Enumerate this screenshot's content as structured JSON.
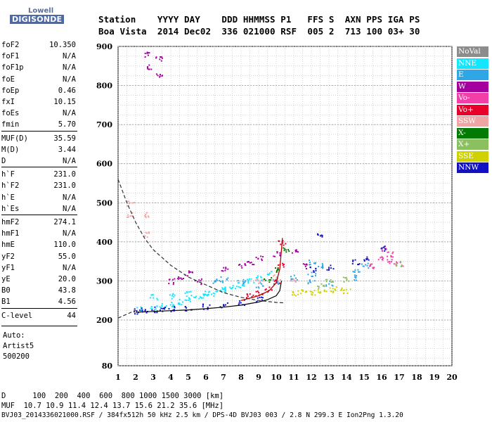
{
  "logo": {
    "line1": "Lowell",
    "line2": "DIGISONDE"
  },
  "header": {
    "row1": "Station    YYYY DAY    DDD HHMMSS P1   FFS S  AXN PPS IGA PS",
    "row2": "Boa Vista  2014 Dec02  336 021000 RSF  005 2  713 100 03+ 30"
  },
  "params": [
    {
      "k": "foF2",
      "v": "10.350"
    },
    {
      "k": "foF1",
      "v": "N/A"
    },
    {
      "k": "foF1p",
      "v": "N/A"
    },
    {
      "k": "foE",
      "v": "N/A"
    },
    {
      "k": "foEp",
      "v": "0.46"
    },
    {
      "k": "fxI",
      "v": "10.15"
    },
    {
      "k": "foEs",
      "v": "N/A"
    },
    {
      "k": "fmin",
      "v": "5.70"
    },
    {
      "k": "MUF(D)",
      "v": "35.59"
    },
    {
      "k": "M(D)",
      "v": "3.44"
    },
    {
      "k": "D",
      "v": "N/A"
    },
    {
      "k": "h`F",
      "v": "231.0"
    },
    {
      "k": "h`F2",
      "v": "231.0"
    },
    {
      "k": "h`E",
      "v": "N/A"
    },
    {
      "k": "h`Es",
      "v": "N/A"
    },
    {
      "k": "hmF2",
      "v": "274.1"
    },
    {
      "k": "hmF1",
      "v": "N/A"
    },
    {
      "k": "hmE",
      "v": "110.0"
    },
    {
      "k": "yF2",
      "v": "55.0"
    },
    {
      "k": "yF1",
      "v": "N/A"
    },
    {
      "k": "yE",
      "v": "20.0"
    },
    {
      "k": "B0",
      "v": "43.8"
    },
    {
      "k": "B1",
      "v": "4.56"
    },
    {
      "k": "C-level",
      "v": "44"
    }
  ],
  "auto_notes": [
    "Auto:",
    "Artist5",
    "500200"
  ],
  "legend": [
    {
      "label": "NoVal",
      "color": "#8c8c8c"
    },
    {
      "label": "NNE",
      "color": "#14e6ff"
    },
    {
      "label": "E",
      "color": "#2fa6e6"
    },
    {
      "label": "W",
      "color": "#a3009e"
    },
    {
      "label": "Vo-",
      "color": "#f23fa8"
    },
    {
      "label": "Vo+",
      "color": "#e8002a"
    },
    {
      "label": "SSW",
      "color": "#f0a5a5"
    },
    {
      "label": "X-",
      "color": "#037a03"
    },
    {
      "label": "X+",
      "color": "#8cbf5f"
    },
    {
      "label": "SSE",
      "color": "#cfd100"
    },
    {
      "label": "NNW",
      "color": "#1212c4"
    }
  ],
  "bottom": {
    "line1": "D      100  200  400  600  800 1000 1500 3000 [km]",
    "line2": "MUF  10.7 10.9 11.4 12.4 13.7 15.6 21.2 35.6 [MHz]",
    "line3": "BVJ03_2014336021000.RSF / 384fx512h 50 kHz 2.5 km / DPS-4D BVJ03 003 / 2.8 N 299.3 E Ion2Png 1.3.20"
  },
  "chart_data": {
    "type": "scatter",
    "title": "",
    "xlabel": "",
    "ylabel": "",
    "xlim": [
      1,
      20
    ],
    "ylim": [
      80,
      900
    ],
    "x_ticks": [
      1,
      2,
      3,
      4,
      5,
      6,
      7,
      8,
      9,
      10,
      11,
      12,
      13,
      14,
      15,
      16,
      17,
      18,
      19,
      20
    ],
    "y_ticks": [
      80,
      200,
      300,
      400,
      500,
      600,
      700,
      800,
      900
    ],
    "grid": true,
    "series": [
      {
        "name": "NNE",
        "color": "#14e6ff",
        "points": [
          [
            2.2,
            228
          ],
          [
            3,
            232
          ],
          [
            3.5,
            238
          ],
          [
            4,
            242
          ],
          [
            4.5,
            248
          ],
          [
            5,
            252
          ],
          [
            5.5,
            258
          ],
          [
            6,
            262
          ],
          [
            6.5,
            270
          ],
          [
            7,
            278
          ],
          [
            7.5,
            285
          ],
          [
            8,
            292
          ],
          [
            8.5,
            300
          ],
          [
            9,
            310
          ],
          [
            9.5,
            320
          ],
          [
            3,
            260
          ],
          [
            4,
            262
          ],
          [
            5,
            268
          ],
          [
            6,
            270
          ],
          [
            7,
            280
          ],
          [
            8,
            290
          ]
        ]
      },
      {
        "name": "E",
        "color": "#2fa6e6",
        "points": [
          [
            6.5,
            300
          ],
          [
            7,
            305
          ],
          [
            8,
            300
          ],
          [
            9,
            290
          ],
          [
            10,
            300
          ],
          [
            11,
            310
          ],
          [
            12,
            300
          ],
          [
            13,
            295
          ],
          [
            14.5,
            310
          ],
          [
            14.5,
            325
          ],
          [
            15,
            340
          ],
          [
            12,
            350
          ],
          [
            12.5,
            340
          ],
          [
            12,
            320
          ]
        ]
      },
      {
        "name": "W",
        "color": "#a3009e",
        "points": [
          [
            2.7,
            850
          ],
          [
            2.7,
            880
          ],
          [
            3.3,
            830
          ],
          [
            3.3,
            870
          ],
          [
            4,
            300
          ],
          [
            4.5,
            310
          ],
          [
            5,
            320
          ],
          [
            5.5,
            300
          ],
          [
            7,
            330
          ],
          [
            8,
            340
          ],
          [
            8.5,
            350
          ],
          [
            9,
            360
          ],
          [
            10,
            370
          ],
          [
            11,
            380
          ],
          [
            11.5,
            340
          ]
        ]
      },
      {
        "name": "Vo-",
        "color": "#f23fa8",
        "points": [
          [
            15.5,
            340
          ],
          [
            16,
            360
          ],
          [
            16.5,
            350
          ],
          [
            17,
            345
          ],
          [
            16.2,
            380
          ],
          [
            16.5,
            370
          ]
        ]
      },
      {
        "name": "Vo+",
        "color": "#e8002a",
        "points": [
          [
            8.5,
            265
          ],
          [
            9,
            270
          ],
          [
            9.5,
            280
          ],
          [
            10,
            300
          ],
          [
            10.2,
            340
          ],
          [
            10.3,
            400
          ]
        ]
      },
      {
        "name": "SSW",
        "color": "#f0a5a5",
        "points": [
          [
            1.7,
            470
          ],
          [
            1.7,
            500
          ],
          [
            2.5,
            420
          ],
          [
            2.5,
            470
          ],
          [
            9,
            300
          ],
          [
            10,
            310
          ],
          [
            11,
            300
          ]
        ]
      },
      {
        "name": "X-",
        "color": "#037a03",
        "points": [
          [
            9.5,
            305
          ],
          [
            10,
            330
          ],
          [
            10.5,
            380
          ]
        ]
      },
      {
        "name": "X+",
        "color": "#8cbf5f",
        "points": [
          [
            12.5,
            290
          ],
          [
            13,
            300
          ],
          [
            14,
            305
          ],
          [
            17,
            345
          ]
        ]
      },
      {
        "name": "SSE",
        "color": "#cfd100",
        "points": [
          [
            11,
            270
          ],
          [
            11.5,
            275
          ],
          [
            12,
            272
          ],
          [
            12.5,
            274
          ],
          [
            13,
            278
          ],
          [
            13.5,
            280
          ],
          [
            14,
            276
          ]
        ]
      },
      {
        "name": "NNW",
        "color": "#1212c4",
        "points": [
          [
            2,
            224
          ],
          [
            2.5,
            226
          ],
          [
            3,
            228
          ],
          [
            3.5,
            228
          ],
          [
            4,
            230
          ],
          [
            5,
            232
          ],
          [
            6,
            236
          ],
          [
            7,
            240
          ],
          [
            8,
            246
          ],
          [
            9,
            254
          ],
          [
            12,
            330
          ],
          [
            12.5,
            420
          ],
          [
            13,
            335
          ],
          [
            14.5,
            350
          ],
          [
            15,
            360
          ],
          [
            16,
            385
          ]
        ]
      }
    ],
    "traces": {
      "dashed_model": [
        [
          1,
          560
        ],
        [
          1.5,
          500
        ],
        [
          2,
          450
        ],
        [
          2.5,
          410
        ],
        [
          3,
          380
        ],
        [
          4,
          340
        ],
        [
          5,
          310
        ],
        [
          6,
          290
        ],
        [
          7,
          270
        ],
        [
          8,
          258
        ],
        [
          9,
          250
        ],
        [
          10,
          245
        ],
        [
          10.4,
          244
        ]
      ],
      "lower_dashed": [
        [
          1,
          205
        ],
        [
          1.5,
          215
        ],
        [
          2,
          225
        ]
      ],
      "profile_black": [
        [
          2,
          220
        ],
        [
          3,
          222
        ],
        [
          4,
          224
        ],
        [
          5,
          226
        ],
        [
          6,
          229
        ],
        [
          7,
          233
        ],
        [
          8,
          238
        ],
        [
          9,
          246
        ],
        [
          9.5,
          252
        ],
        [
          10,
          262
        ],
        [
          10.2,
          275
        ],
        [
          10.3,
          300
        ]
      ],
      "profile_red": [
        [
          8,
          250
        ],
        [
          9,
          262
        ],
        [
          9.6,
          275
        ],
        [
          10,
          295
        ],
        [
          10.2,
          330
        ],
        [
          10.3,
          380
        ],
        [
          10.35,
          410
        ]
      ]
    }
  }
}
